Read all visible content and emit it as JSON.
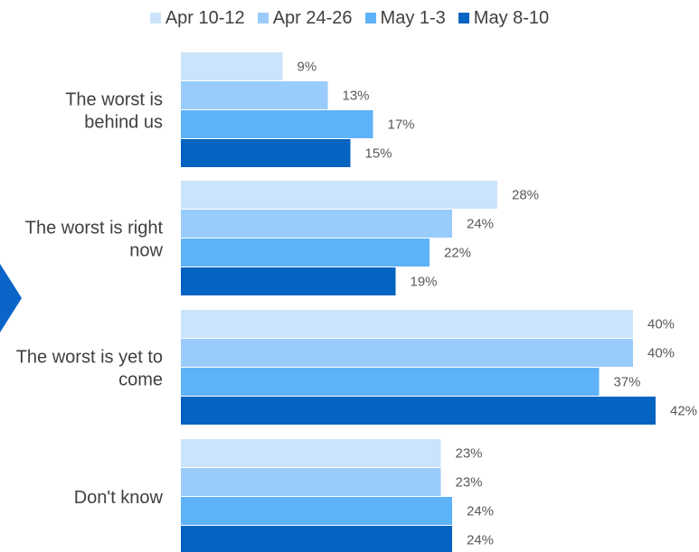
{
  "chart_data": {
    "type": "bar",
    "orientation": "horizontal",
    "categories": [
      [
        "The worst is",
        "behind us"
      ],
      [
        "The worst is right",
        "now"
      ],
      [
        "The worst is yet to",
        "come"
      ],
      [
        "Don't know"
      ]
    ],
    "series": [
      {
        "name": "Apr 10-12",
        "color": "#cce4fb",
        "values": [
          9,
          28,
          40,
          23
        ],
        "labels": [
          "9%",
          "28%",
          "40%",
          "23%"
        ]
      },
      {
        "name": "Apr 24-26",
        "color": "#99ccfb",
        "values": [
          13,
          24,
          40,
          23
        ],
        "labels": [
          "13%",
          "24%",
          "40%",
          "23%"
        ]
      },
      {
        "name": "May 1-3",
        "color": "#5eb3f8",
        "values": [
          17,
          22,
          37,
          24
        ],
        "labels": [
          "17%",
          "22%",
          "37%",
          "24%"
        ]
      },
      {
        "name": "May 8-10",
        "color": "#0563c1",
        "values": [
          15,
          19,
          42,
          24
        ],
        "labels": [
          "15%",
          "19%",
          "42%",
          "24%"
        ]
      }
    ],
    "xlim": [
      0,
      45
    ],
    "legend_position": "top",
    "grid": false
  }
}
